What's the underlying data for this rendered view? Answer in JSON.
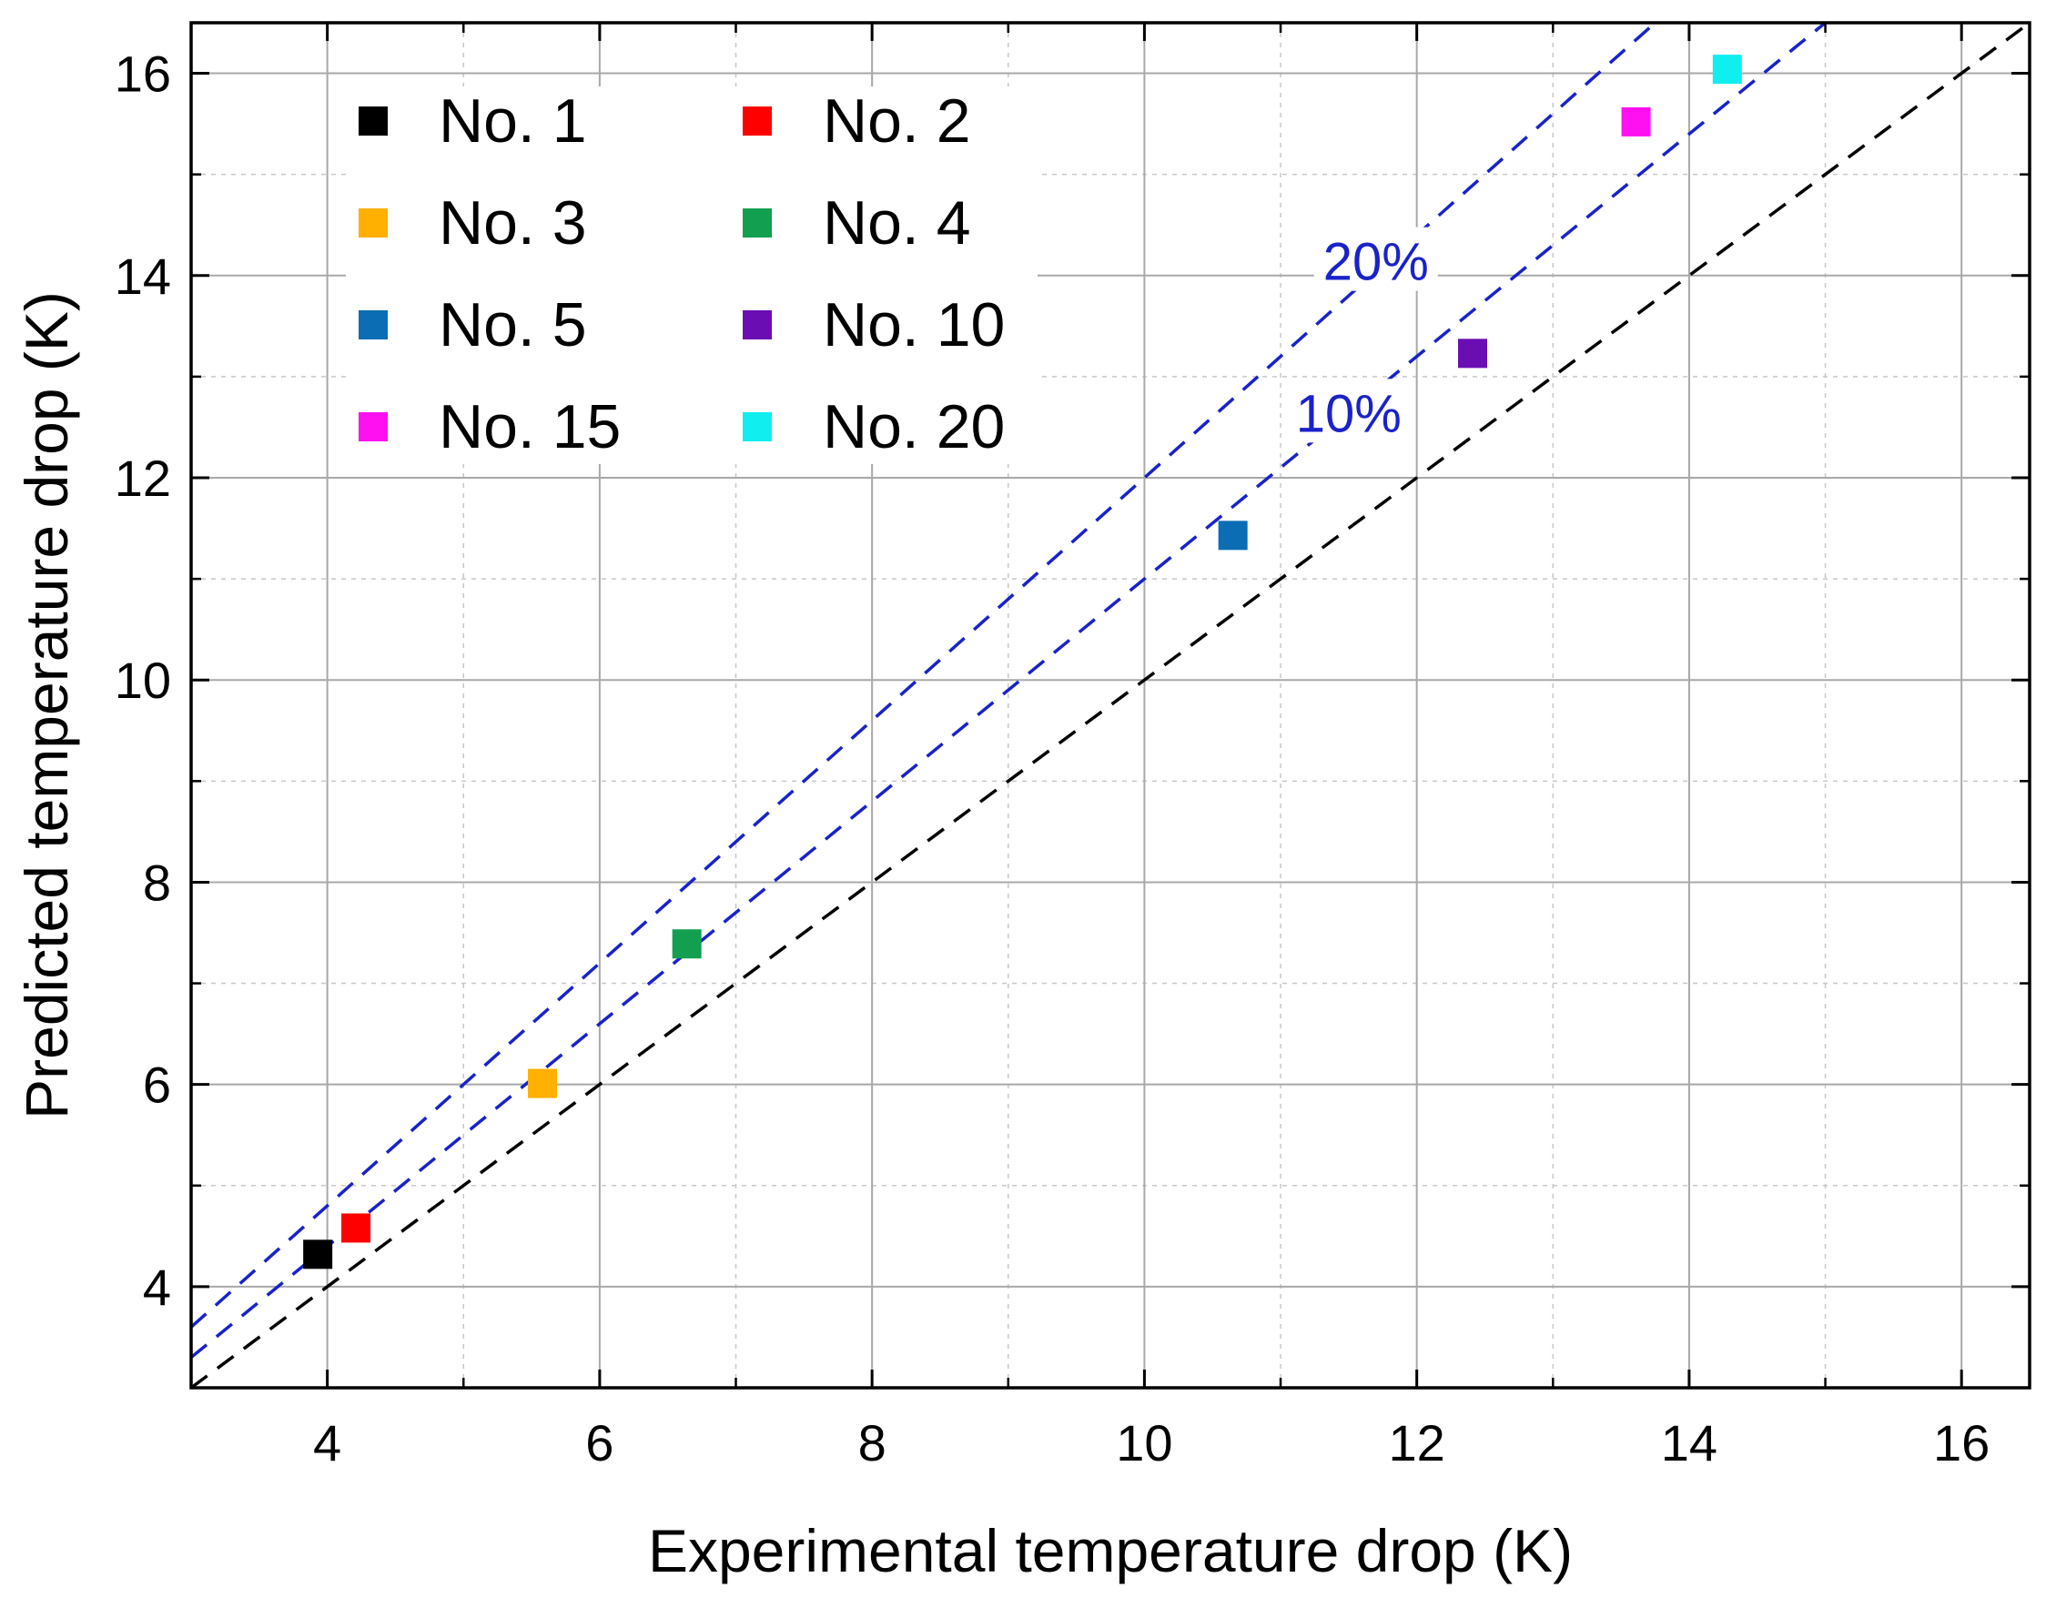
{
  "chart_data": {
    "type": "scatter",
    "title": "",
    "xlabel": "Experimental temperature drop (K)",
    "ylabel": "Predicted temperature drop (K)",
    "xlim": [
      3,
      16.5
    ],
    "ylim": [
      3,
      16.5
    ],
    "xticks": [
      4,
      6,
      8,
      10,
      12,
      14,
      16
    ],
    "yticks": [
      4,
      6,
      8,
      10,
      12,
      14,
      16
    ],
    "xtick_labels": [
      "4",
      "6",
      "8",
      "10",
      "12",
      "14",
      "16"
    ],
    "ytick_labels": [
      "4",
      "6",
      "8",
      "10",
      "12",
      "14",
      "16"
    ],
    "grid": true,
    "legend_position": "top-left",
    "series": [
      {
        "name": "No. 1",
        "color": "#000000",
        "x": 3.93,
        "y": 4.32
      },
      {
        "name": "No. 2",
        "color": "#ff0000",
        "x": 4.21,
        "y": 4.58
      },
      {
        "name": "No. 3",
        "color": "#ffb000",
        "x": 5.58,
        "y": 6.01
      },
      {
        "name": "No. 4",
        "color": "#12a050",
        "x": 6.64,
        "y": 7.39
      },
      {
        "name": "No. 5",
        "color": "#0b6db4",
        "x": 10.65,
        "y": 11.43
      },
      {
        "name": "No. 10",
        "color": "#6a0db3",
        "x": 12.41,
        "y": 13.23
      },
      {
        "name": "No. 15",
        "color": "#ff10f0",
        "x": 13.61,
        "y": 15.52
      },
      {
        "name": "No. 20",
        "color": "#10eef0",
        "x": 14.28,
        "y": 16.04
      }
    ],
    "reference_lines": [
      {
        "name": "parity",
        "slope": 1.0,
        "color": "#000000"
      },
      {
        "name": "10%",
        "slope": 1.1,
        "color": "#1a22c8",
        "label": "10%"
      },
      {
        "name": "20%",
        "slope": 1.2,
        "color": "#1a22c8",
        "label": "20%"
      }
    ],
    "annotations": [
      {
        "text": "20%",
        "x": 11.7,
        "y": 14.1
      },
      {
        "text": "10%",
        "x": 11.5,
        "y": 12.6
      }
    ]
  }
}
